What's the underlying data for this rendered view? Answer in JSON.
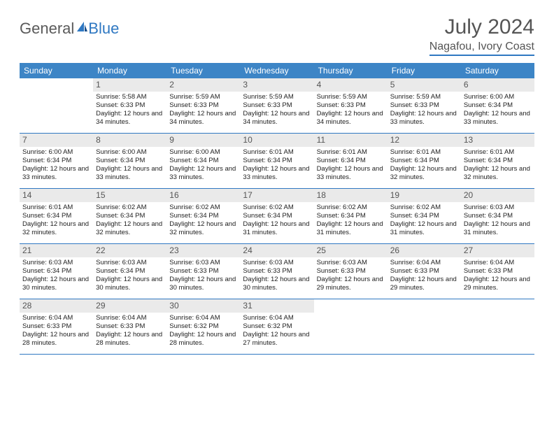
{
  "brand": {
    "text1": "General",
    "text2": "Blue"
  },
  "title": "July 2024",
  "location": "Nagafou, Ivory Coast",
  "colors": {
    "header_bg": "#3d85c6",
    "accent": "#2f78c2",
    "daynum_bg": "#eaeaea",
    "text": "#222222",
    "title_text": "#555555"
  },
  "dayNames": [
    "Sunday",
    "Monday",
    "Tuesday",
    "Wednesday",
    "Thursday",
    "Friday",
    "Saturday"
  ],
  "weeks": [
    [
      {
        "n": "",
        "sr": "",
        "ss": "",
        "dl": ""
      },
      {
        "n": "1",
        "sr": "Sunrise: 5:58 AM",
        "ss": "Sunset: 6:33 PM",
        "dl": "Daylight: 12 hours and 34 minutes."
      },
      {
        "n": "2",
        "sr": "Sunrise: 5:59 AM",
        "ss": "Sunset: 6:33 PM",
        "dl": "Daylight: 12 hours and 34 minutes."
      },
      {
        "n": "3",
        "sr": "Sunrise: 5:59 AM",
        "ss": "Sunset: 6:33 PM",
        "dl": "Daylight: 12 hours and 34 minutes."
      },
      {
        "n": "4",
        "sr": "Sunrise: 5:59 AM",
        "ss": "Sunset: 6:33 PM",
        "dl": "Daylight: 12 hours and 34 minutes."
      },
      {
        "n": "5",
        "sr": "Sunrise: 5:59 AM",
        "ss": "Sunset: 6:33 PM",
        "dl": "Daylight: 12 hours and 33 minutes."
      },
      {
        "n": "6",
        "sr": "Sunrise: 6:00 AM",
        "ss": "Sunset: 6:34 PM",
        "dl": "Daylight: 12 hours and 33 minutes."
      }
    ],
    [
      {
        "n": "7",
        "sr": "Sunrise: 6:00 AM",
        "ss": "Sunset: 6:34 PM",
        "dl": "Daylight: 12 hours and 33 minutes."
      },
      {
        "n": "8",
        "sr": "Sunrise: 6:00 AM",
        "ss": "Sunset: 6:34 PM",
        "dl": "Daylight: 12 hours and 33 minutes."
      },
      {
        "n": "9",
        "sr": "Sunrise: 6:00 AM",
        "ss": "Sunset: 6:34 PM",
        "dl": "Daylight: 12 hours and 33 minutes."
      },
      {
        "n": "10",
        "sr": "Sunrise: 6:01 AM",
        "ss": "Sunset: 6:34 PM",
        "dl": "Daylight: 12 hours and 33 minutes."
      },
      {
        "n": "11",
        "sr": "Sunrise: 6:01 AM",
        "ss": "Sunset: 6:34 PM",
        "dl": "Daylight: 12 hours and 33 minutes."
      },
      {
        "n": "12",
        "sr": "Sunrise: 6:01 AM",
        "ss": "Sunset: 6:34 PM",
        "dl": "Daylight: 12 hours and 32 minutes."
      },
      {
        "n": "13",
        "sr": "Sunrise: 6:01 AM",
        "ss": "Sunset: 6:34 PM",
        "dl": "Daylight: 12 hours and 32 minutes."
      }
    ],
    [
      {
        "n": "14",
        "sr": "Sunrise: 6:01 AM",
        "ss": "Sunset: 6:34 PM",
        "dl": "Daylight: 12 hours and 32 minutes."
      },
      {
        "n": "15",
        "sr": "Sunrise: 6:02 AM",
        "ss": "Sunset: 6:34 PM",
        "dl": "Daylight: 12 hours and 32 minutes."
      },
      {
        "n": "16",
        "sr": "Sunrise: 6:02 AM",
        "ss": "Sunset: 6:34 PM",
        "dl": "Daylight: 12 hours and 32 minutes."
      },
      {
        "n": "17",
        "sr": "Sunrise: 6:02 AM",
        "ss": "Sunset: 6:34 PM",
        "dl": "Daylight: 12 hours and 31 minutes."
      },
      {
        "n": "18",
        "sr": "Sunrise: 6:02 AM",
        "ss": "Sunset: 6:34 PM",
        "dl": "Daylight: 12 hours and 31 minutes."
      },
      {
        "n": "19",
        "sr": "Sunrise: 6:02 AM",
        "ss": "Sunset: 6:34 PM",
        "dl": "Daylight: 12 hours and 31 minutes."
      },
      {
        "n": "20",
        "sr": "Sunrise: 6:03 AM",
        "ss": "Sunset: 6:34 PM",
        "dl": "Daylight: 12 hours and 31 minutes."
      }
    ],
    [
      {
        "n": "21",
        "sr": "Sunrise: 6:03 AM",
        "ss": "Sunset: 6:34 PM",
        "dl": "Daylight: 12 hours and 30 minutes."
      },
      {
        "n": "22",
        "sr": "Sunrise: 6:03 AM",
        "ss": "Sunset: 6:34 PM",
        "dl": "Daylight: 12 hours and 30 minutes."
      },
      {
        "n": "23",
        "sr": "Sunrise: 6:03 AM",
        "ss": "Sunset: 6:33 PM",
        "dl": "Daylight: 12 hours and 30 minutes."
      },
      {
        "n": "24",
        "sr": "Sunrise: 6:03 AM",
        "ss": "Sunset: 6:33 PM",
        "dl": "Daylight: 12 hours and 30 minutes."
      },
      {
        "n": "25",
        "sr": "Sunrise: 6:03 AM",
        "ss": "Sunset: 6:33 PM",
        "dl": "Daylight: 12 hours and 29 minutes."
      },
      {
        "n": "26",
        "sr": "Sunrise: 6:04 AM",
        "ss": "Sunset: 6:33 PM",
        "dl": "Daylight: 12 hours and 29 minutes."
      },
      {
        "n": "27",
        "sr": "Sunrise: 6:04 AM",
        "ss": "Sunset: 6:33 PM",
        "dl": "Daylight: 12 hours and 29 minutes."
      }
    ],
    [
      {
        "n": "28",
        "sr": "Sunrise: 6:04 AM",
        "ss": "Sunset: 6:33 PM",
        "dl": "Daylight: 12 hours and 28 minutes."
      },
      {
        "n": "29",
        "sr": "Sunrise: 6:04 AM",
        "ss": "Sunset: 6:33 PM",
        "dl": "Daylight: 12 hours and 28 minutes."
      },
      {
        "n": "30",
        "sr": "Sunrise: 6:04 AM",
        "ss": "Sunset: 6:32 PM",
        "dl": "Daylight: 12 hours and 28 minutes."
      },
      {
        "n": "31",
        "sr": "Sunrise: 6:04 AM",
        "ss": "Sunset: 6:32 PM",
        "dl": "Daylight: 12 hours and 27 minutes."
      },
      {
        "n": "",
        "sr": "",
        "ss": "",
        "dl": ""
      },
      {
        "n": "",
        "sr": "",
        "ss": "",
        "dl": ""
      },
      {
        "n": "",
        "sr": "",
        "ss": "",
        "dl": ""
      }
    ]
  ]
}
